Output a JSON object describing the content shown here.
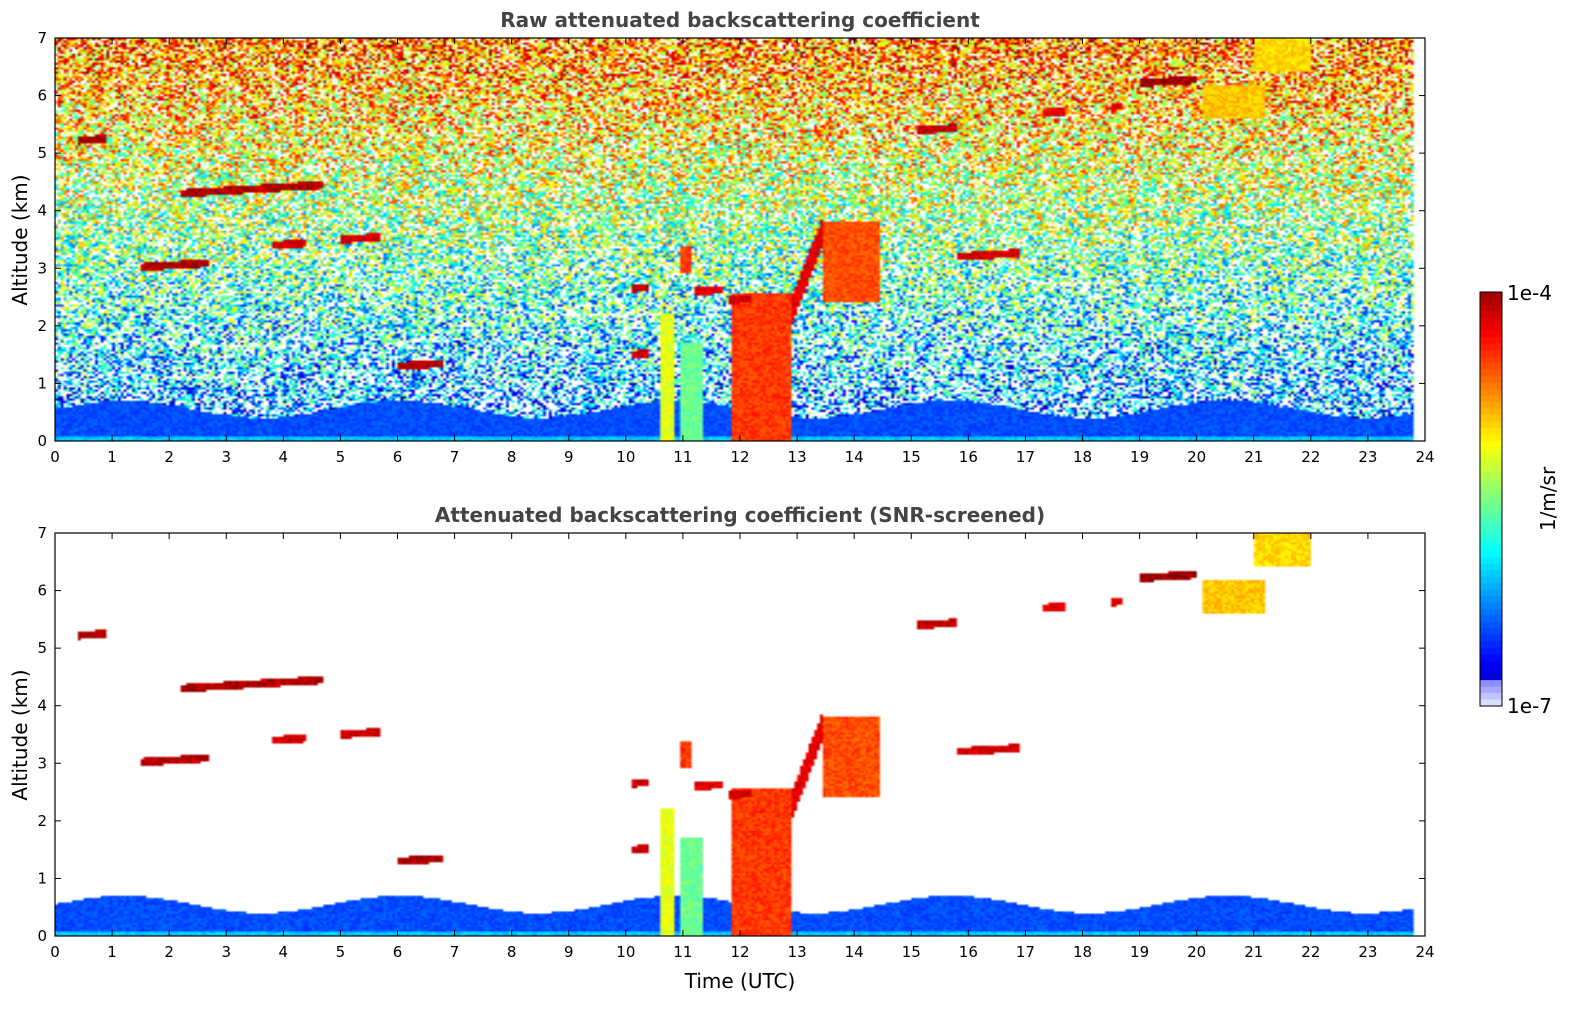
{
  "chart_data": [
    {
      "type": "heatmap",
      "title": "Raw attenuated backscattering coefficient",
      "xlabel": "",
      "ylabel": "Altitude (km)",
      "xlim": [
        0,
        24
      ],
      "ylim": [
        0,
        7
      ],
      "xticks": [
        "0",
        "1",
        "2",
        "3",
        "4",
        "5",
        "6",
        "7",
        "8",
        "9",
        "10",
        "11",
        "12",
        "13",
        "14",
        "15",
        "16",
        "17",
        "18",
        "19",
        "20",
        "21",
        "22",
        "23",
        "24"
      ],
      "yticks": [
        "0",
        "1",
        "2",
        "3",
        "4",
        "5",
        "6",
        "7"
      ],
      "screening": "none",
      "boundary_layer_top_km": 0.55,
      "noise_level": 0.7,
      "features": [
        {
          "kind": "cloud_layer",
          "t0": 0.4,
          "t1": 0.9,
          "z": 5.22,
          "level": 0.96
        },
        {
          "kind": "cloud_layer",
          "t0": 2.2,
          "t1": 4.7,
          "z": 4.3,
          "level": 0.95
        },
        {
          "kind": "cloud_layer",
          "t0": 1.5,
          "t1": 2.7,
          "z": 3.02,
          "level": 0.95
        },
        {
          "kind": "cloud_layer",
          "t0": 3.8,
          "t1": 4.4,
          "z": 3.4,
          "level": 0.92
        },
        {
          "kind": "cloud_layer",
          "t0": 5.0,
          "t1": 5.7,
          "z": 3.5,
          "level": 0.92
        },
        {
          "kind": "cloud_layer",
          "t0": 6.0,
          "t1": 6.8,
          "z": 1.3,
          "level": 0.95
        },
        {
          "kind": "cloud_layer",
          "t0": 10.1,
          "t1": 10.4,
          "z": 2.65,
          "level": 0.93
        },
        {
          "kind": "cloud_layer",
          "t0": 10.1,
          "t1": 10.4,
          "z": 1.5,
          "level": 0.93
        },
        {
          "kind": "cloud_layer",
          "t0": 11.2,
          "t1": 11.7,
          "z": 2.6,
          "level": 0.9
        },
        {
          "kind": "cloud_layer",
          "t0": 11.8,
          "t1": 12.2,
          "z": 2.45,
          "level": 0.92
        },
        {
          "kind": "cloud_layer",
          "t0": 15.1,
          "t1": 15.8,
          "z": 5.4,
          "level": 0.93
        },
        {
          "kind": "cloud_layer",
          "t0": 15.8,
          "t1": 16.9,
          "z": 3.2,
          "level": 0.92
        },
        {
          "kind": "cloud_layer",
          "t0": 17.3,
          "t1": 17.7,
          "z": 5.7,
          "level": 0.9
        },
        {
          "kind": "cloud_layer",
          "t0": 18.5,
          "t1": 18.7,
          "z": 5.8,
          "level": 0.9
        },
        {
          "kind": "cloud_layer",
          "t0": 19.0,
          "t1": 20.0,
          "z": 6.22,
          "level": 0.97
        },
        {
          "kind": "diffuse_cloud",
          "t0": 20.1,
          "t1": 21.2,
          "z0": 5.6,
          "z1": 6.2,
          "level": 0.68
        },
        {
          "kind": "diffuse_cloud",
          "t0": 21.0,
          "t1": 22.0,
          "z0": 6.4,
          "z1": 7.0,
          "level": 0.66
        },
        {
          "kind": "precipitation",
          "t0": 11.85,
          "t1": 12.9,
          "z0": 0.0,
          "z1": 2.55,
          "level": 0.82
        },
        {
          "kind": "precipitation",
          "t0": 13.45,
          "t1": 14.45,
          "z0": 2.4,
          "z1": 3.8,
          "level": 0.8
        },
        {
          "kind": "rain_shaft",
          "t0": 10.6,
          "t1": 10.85,
          "z0": 0.0,
          "z1": 2.2,
          "level": 0.6
        },
        {
          "kind": "rain_shaft",
          "t0": 10.95,
          "t1": 11.35,
          "z0": 0.0,
          "z1": 1.7,
          "level": 0.48
        },
        {
          "kind": "rain_shaft",
          "t0": 10.95,
          "t1": 11.15,
          "z0": 2.9,
          "z1": 3.4,
          "level": 0.82
        },
        {
          "kind": "slanted_streak",
          "t0": 12.9,
          "t1": 13.45,
          "z0": 2.5,
          "z1": 3.9,
          "level": 0.9
        }
      ]
    },
    {
      "type": "heatmap",
      "title": "Attenuated backscattering coefficient (SNR-screened)",
      "xlabel": "Time (UTC)",
      "ylabel": "Altitude (km)",
      "xlim": [
        0,
        24
      ],
      "ylim": [
        0,
        7
      ],
      "xticks": [
        "0",
        "1",
        "2",
        "3",
        "4",
        "5",
        "6",
        "7",
        "8",
        "9",
        "10",
        "11",
        "12",
        "13",
        "14",
        "15",
        "16",
        "17",
        "18",
        "19",
        "20",
        "21",
        "22",
        "23",
        "24"
      ],
      "yticks": [
        "0",
        "1",
        "2",
        "3",
        "4",
        "5",
        "6",
        "7"
      ],
      "screening": "snr",
      "boundary_layer_top_km": 0.55,
      "noise_level": 0.0,
      "features": "same as raw panel, low-SNR background removed"
    }
  ],
  "colorbar": {
    "label": "1/m/sr",
    "max_label": "1e-4",
    "min_label": "1e-7",
    "colormap": "jet",
    "scale": "log"
  }
}
